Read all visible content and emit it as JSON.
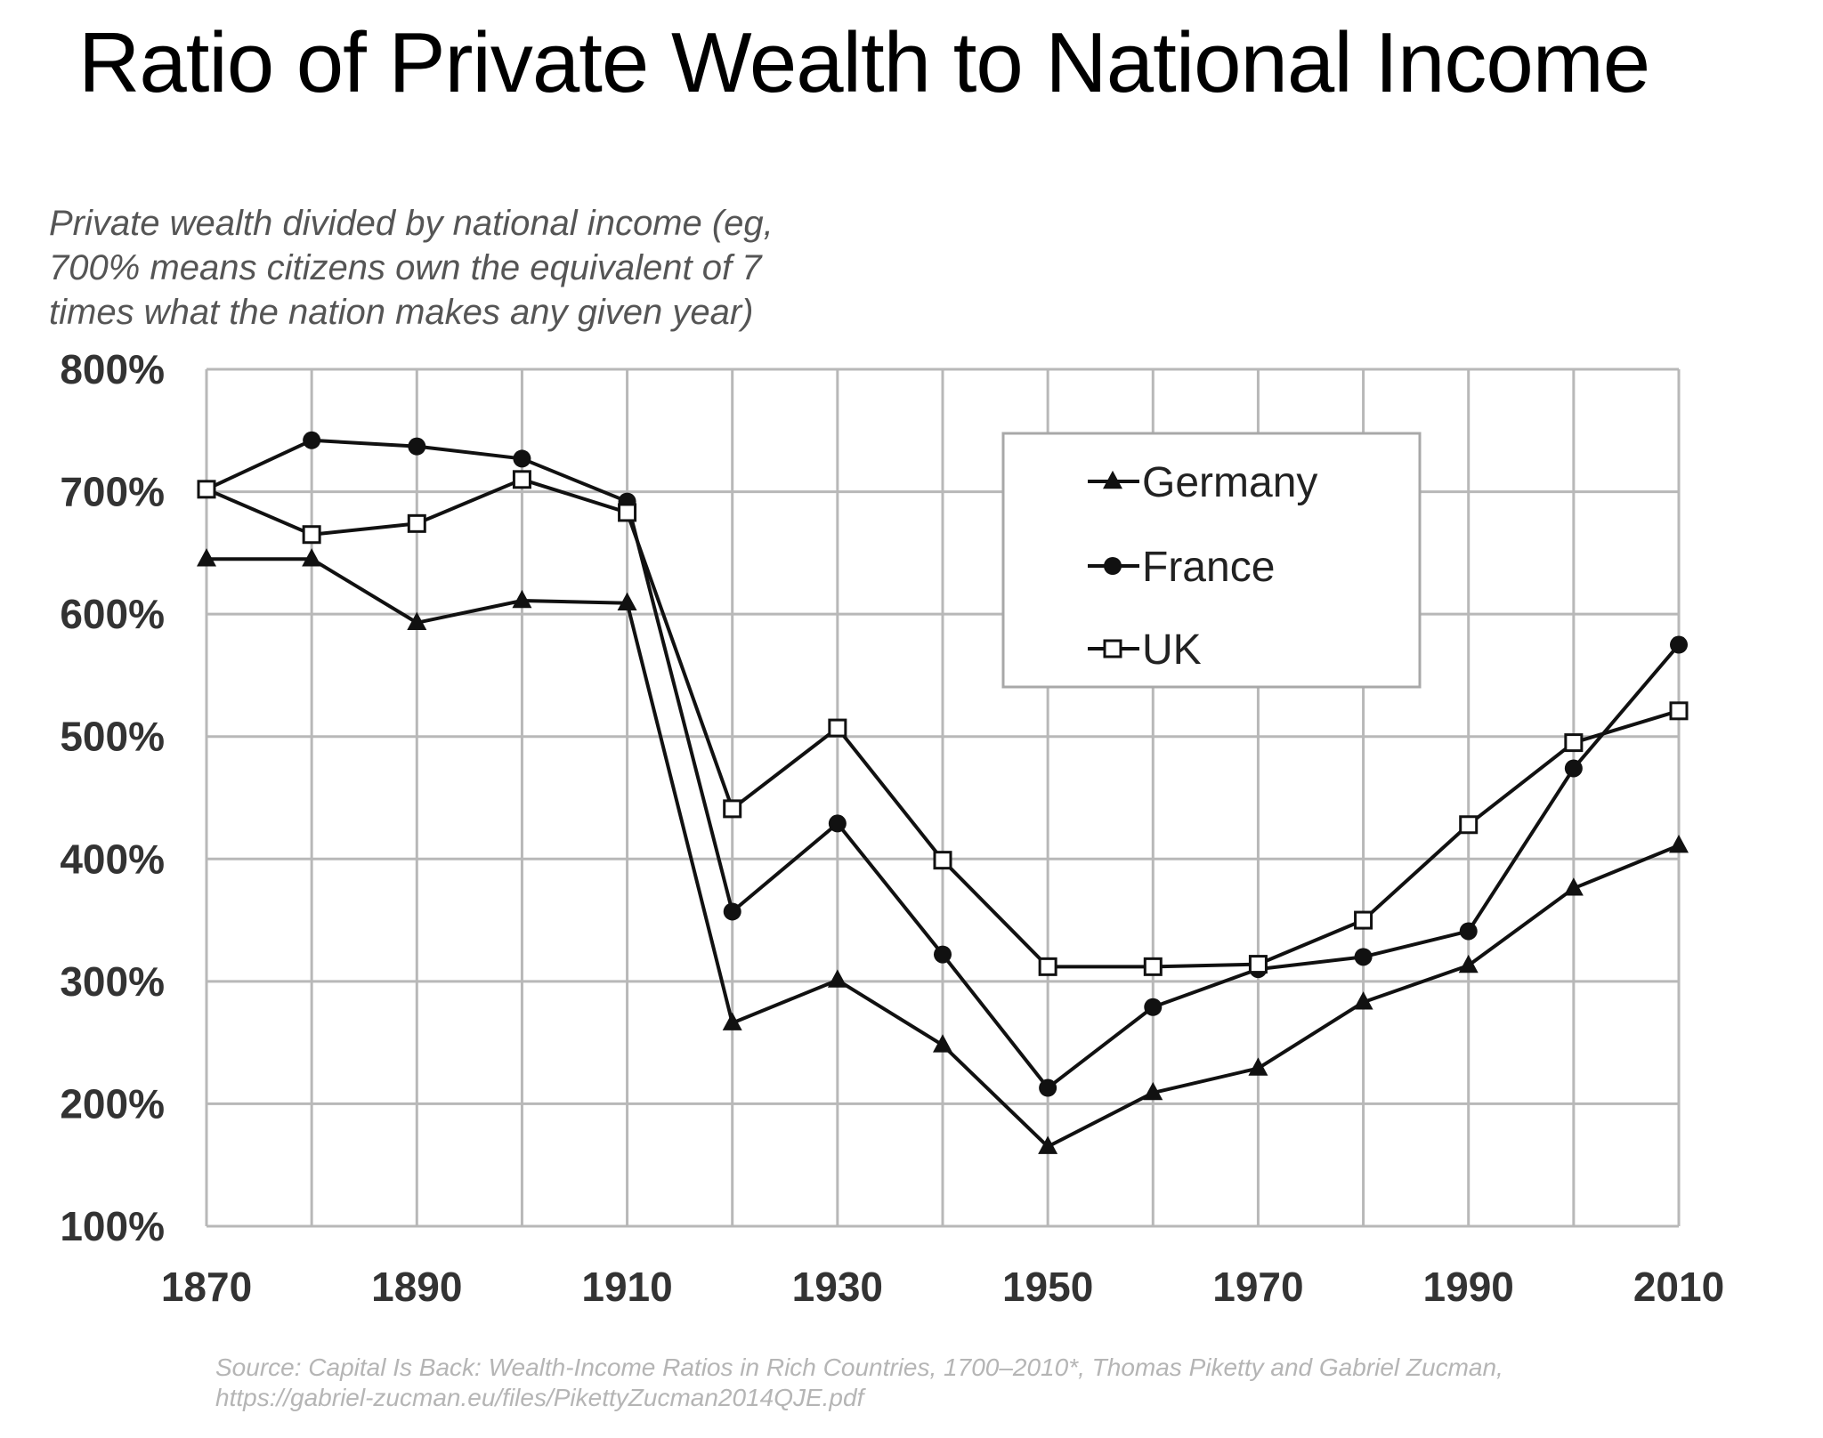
{
  "title": "Ratio of Private Wealth to National Income",
  "subtitle": "Private wealth divided by national income (eg, 700% means citizens own the equivalent of 7 times what the nation makes any given year)",
  "source_line1": "Source: Capital Is Back: Wealth-Income Ratios in Rich Countries, 1700–2010*, Thomas Piketty and Gabriel Zucman,",
  "source_line2": "https://gabriel-zucman.eu/files/PikettyZucman2014QJE.pdf",
  "chart_data": {
    "type": "line",
    "x": [
      1870,
      1880,
      1890,
      1900,
      1910,
      1920,
      1930,
      1940,
      1950,
      1960,
      1970,
      1980,
      1990,
      2000,
      2010
    ],
    "series": [
      {
        "name": "Germany",
        "marker": "triangle",
        "values": [
          645,
          645,
          593,
          611,
          609,
          266,
          301,
          248,
          165,
          209,
          229,
          283,
          313,
          376,
          411
        ]
      },
      {
        "name": "France",
        "marker": "circle",
        "values": [
          702,
          742,
          737,
          727,
          692,
          357,
          429,
          322,
          213,
          279,
          310,
          320,
          341,
          474,
          575
        ]
      },
      {
        "name": "UK",
        "marker": "square",
        "values": [
          702,
          665,
          674,
          710,
          683,
          441,
          507,
          399,
          312,
          312,
          314,
          350,
          428,
          495,
          521
        ]
      }
    ],
    "xlim": [
      1870,
      2010
    ],
    "ylim": [
      100,
      800
    ],
    "xticks": [
      "1870",
      "1890",
      "1910",
      "1930",
      "1950",
      "1970",
      "1990",
      "2010"
    ],
    "yticks": [
      "100%",
      "200%",
      "300%",
      "400%",
      "500%",
      "600%",
      "700%",
      "800%"
    ],
    "xlabel": "",
    "ylabel": "",
    "grid": true,
    "legend": "upper-center-right",
    "colors": {
      "line": "#111111",
      "grid": "#b8b8b8",
      "marker_fill_uk": "#ffffff"
    }
  }
}
